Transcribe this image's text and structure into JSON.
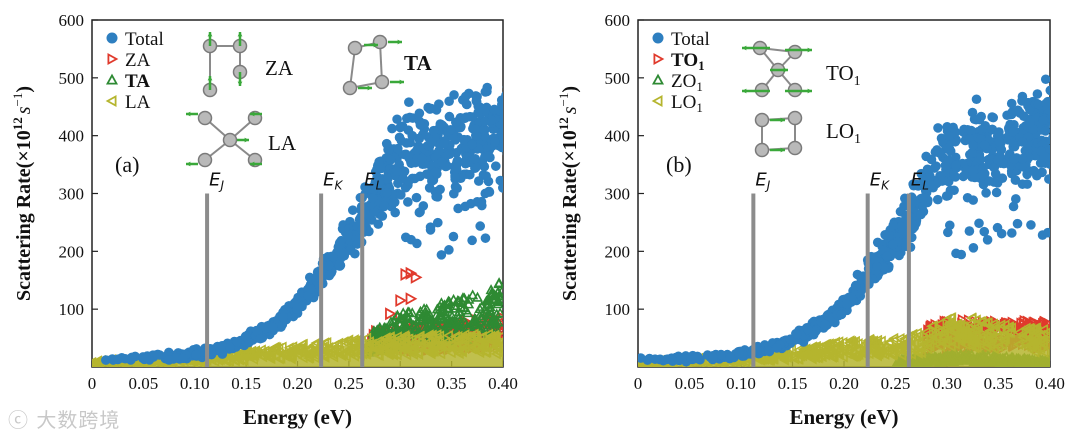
{
  "chart_data": [
    {
      "type": "scatter",
      "panel_label": "(a)",
      "title": "",
      "xlabel": "Energy (eV)",
      "ylabel": "Scattering Rate(×10",
      "ylabel_exp": "12",
      "ylabel_unit_s": "s",
      "ylabel_unit_exp": "−1",
      "ylabel_close": ")",
      "xlim": [
        0,
        0.4
      ],
      "ylim": [
        0,
        600
      ],
      "xticks": [
        "0",
        "0.05",
        "0.10",
        "0.15",
        "0.20",
        "0.25",
        "0.30",
        "0.35",
        "0.40"
      ],
      "yticks": [
        "100",
        "200",
        "300",
        "400",
        "500",
        "600"
      ],
      "legend": [
        "Total",
        "ZA",
        "TA",
        "LA"
      ],
      "legend_position": "top-left",
      "markers": {
        "Total": "circle",
        "ZA": "triangle-right",
        "TA": "triangle-up",
        "LA": "triangle-left"
      },
      "mode_labels": [
        "ZA",
        "TA",
        "LA"
      ],
      "vlines": [
        {
          "x": 0.112,
          "label": "E",
          "sub": "J"
        },
        {
          "x": 0.223,
          "label": "E",
          "sub": "K"
        },
        {
          "x": 0.263,
          "label": "E",
          "sub": "L"
        }
      ],
      "series": [
        {
          "name": "Total",
          "color": "#2E7FC0",
          "points": [
            [
              0.0,
              15
            ],
            [
              0.02,
              14
            ],
            [
              0.04,
              15
            ],
            [
              0.06,
              16
            ],
            [
              0.08,
              17
            ],
            [
              0.1,
              22
            ],
            [
              0.12,
              28
            ],
            [
              0.14,
              40
            ],
            [
              0.16,
              55
            ],
            [
              0.18,
              75
            ],
            [
              0.2,
              105
            ],
            [
              0.22,
              150
            ],
            [
              0.24,
              200
            ],
            [
              0.26,
              250
            ],
            [
              0.28,
              310
            ],
            [
              0.3,
              360
            ],
            [
              0.32,
              380
            ],
            [
              0.34,
              370
            ],
            [
              0.36,
              390
            ],
            [
              0.38,
              400
            ],
            [
              0.4,
              410
            ]
          ],
          "spread": [
            [
              0.0,
              3
            ],
            [
              0.2,
              20
            ],
            [
              0.26,
              60
            ],
            [
              0.3,
              110
            ],
            [
              0.4,
              120
            ]
          ]
        },
        {
          "name": "ZA",
          "color": "#E03A2C",
          "points": [
            [
              0.27,
              52
            ],
            [
              0.3,
              58
            ],
            [
              0.33,
              62
            ],
            [
              0.36,
              66
            ],
            [
              0.38,
              70
            ],
            [
              0.4,
              74
            ]
          ],
          "outliers": [
            [
              0.29,
              92
            ],
            [
              0.3,
              115
            ],
            [
              0.305,
              160
            ],
            [
              0.31,
              162
            ],
            [
              0.315,
              155
            ],
            [
              0.31,
              118
            ],
            [
              0.3,
              85
            ]
          ]
        },
        {
          "name": "TA",
          "color": "#2E8A33",
          "points": [
            [
              0.27,
              50
            ],
            [
              0.29,
              70
            ],
            [
              0.31,
              85
            ],
            [
              0.33,
              90
            ],
            [
              0.35,
              98
            ],
            [
              0.37,
              106
            ],
            [
              0.39,
              118
            ],
            [
              0.4,
              128
            ]
          ]
        },
        {
          "name": "LA",
          "color": "#B5B52E",
          "points": [
            [
              0.0,
              10
            ],
            [
              0.05,
              12
            ],
            [
              0.1,
              16
            ],
            [
              0.15,
              24
            ],
            [
              0.2,
              32
            ],
            [
              0.25,
              40
            ],
            [
              0.3,
              45
            ],
            [
              0.35,
              48
            ],
            [
              0.4,
              50
            ]
          ]
        }
      ]
    },
    {
      "type": "scatter",
      "panel_label": "(b)",
      "title": "",
      "xlabel": "Energy (eV)",
      "ylabel": "Scattering Rate(×10",
      "ylabel_exp": "12",
      "ylabel_unit_s": "s",
      "ylabel_unit_exp": "−1",
      "ylabel_close": ")",
      "xlim": [
        0,
        0.4
      ],
      "ylim": [
        0,
        600
      ],
      "xticks": [
        "0",
        "0.05",
        "0.10",
        "0.15",
        "0.20",
        "0.25",
        "0.30",
        "0.35",
        "0.40"
      ],
      "yticks": [
        "100",
        "200",
        "300",
        "400",
        "500",
        "600"
      ],
      "legend": [
        "Total",
        "TO1",
        "ZO1",
        "LO1"
      ],
      "legend_position": "top-left",
      "markers": {
        "Total": "circle",
        "TO1": "triangle-right",
        "ZO1": "triangle-up",
        "LO1": "triangle-left"
      },
      "mode_labels": [
        "TO1",
        "LO1"
      ],
      "vlines": [
        {
          "x": 0.112,
          "label": "E",
          "sub": "J"
        },
        {
          "x": 0.223,
          "label": "E",
          "sub": "K"
        },
        {
          "x": 0.263,
          "label": "E",
          "sub": "L"
        }
      ],
      "series": [
        {
          "name": "Total",
          "color": "#2E7FC0",
          "points": [
            [
              0.0,
              15
            ],
            [
              0.02,
              14
            ],
            [
              0.04,
              15
            ],
            [
              0.06,
              16
            ],
            [
              0.08,
              17
            ],
            [
              0.1,
              22
            ],
            [
              0.12,
              28
            ],
            [
              0.14,
              40
            ],
            [
              0.16,
              55
            ],
            [
              0.18,
              75
            ],
            [
              0.2,
              105
            ],
            [
              0.22,
              150
            ],
            [
              0.24,
              200
            ],
            [
              0.26,
              250
            ],
            [
              0.28,
              310
            ],
            [
              0.3,
              360
            ],
            [
              0.32,
              380
            ],
            [
              0.34,
              370
            ],
            [
              0.36,
              390
            ],
            [
              0.38,
              400
            ],
            [
              0.4,
              410
            ]
          ],
          "spread": [
            [
              0.0,
              3
            ],
            [
              0.2,
              20
            ],
            [
              0.26,
              60
            ],
            [
              0.3,
              110
            ],
            [
              0.4,
              120
            ]
          ]
        },
        {
          "name": "TO1",
          "color": "#E03A2C",
          "points": [
            [
              0.28,
              60
            ],
            [
              0.3,
              68
            ],
            [
              0.32,
              70
            ],
            [
              0.34,
              68
            ],
            [
              0.36,
              66
            ],
            [
              0.38,
              68
            ],
            [
              0.4,
              66
            ]
          ]
        },
        {
          "name": "ZO1",
          "color": "#2E8A33",
          "points": [
            [
              0.25,
              10
            ],
            [
              0.28,
              14
            ],
            [
              0.3,
              18
            ],
            [
              0.32,
              20
            ],
            [
              0.35,
              16
            ],
            [
              0.38,
              12
            ],
            [
              0.4,
              10
            ]
          ]
        },
        {
          "name": "LO1",
          "color": "#B5B52E",
          "points": [
            [
              0.0,
              8
            ],
            [
              0.05,
              12
            ],
            [
              0.1,
              18
            ],
            [
              0.15,
              26
            ],
            [
              0.2,
              38
            ],
            [
              0.25,
              42
            ],
            [
              0.28,
              55
            ],
            [
              0.31,
              78
            ],
            [
              0.34,
              64
            ],
            [
              0.37,
              58
            ],
            [
              0.4,
              56
            ]
          ]
        }
      ]
    }
  ],
  "watermark": "大数跨境"
}
